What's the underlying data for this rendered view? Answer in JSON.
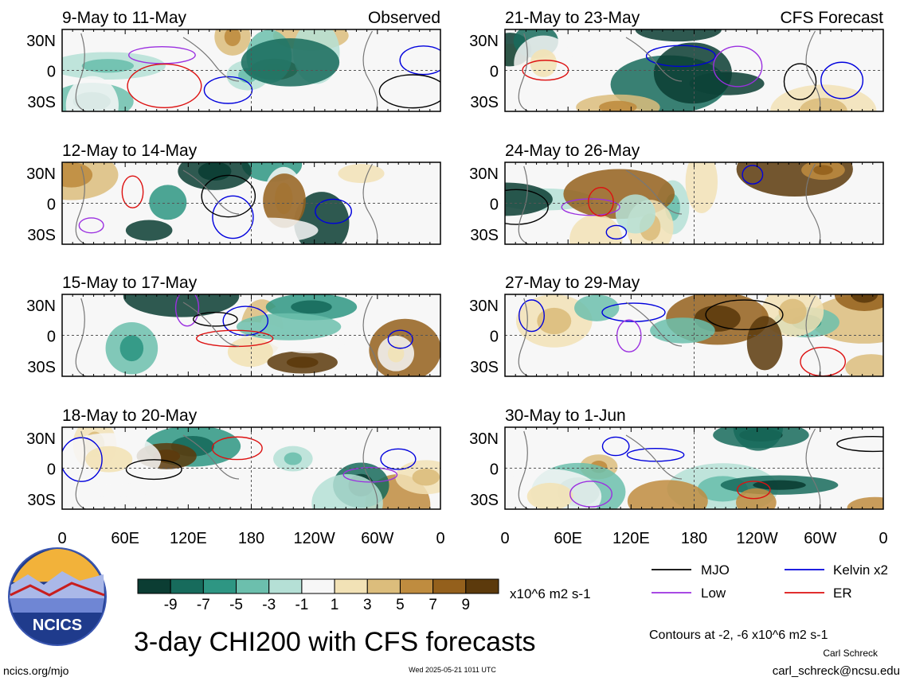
{
  "figure": {
    "title": "3-day CHI200 with CFS forecasts",
    "observed_label": "Observed",
    "forecast_label": "CFS Forecast",
    "source_url": "ncics.org/mjo",
    "timestamp": "Wed 2025-05-21 1011 UTC",
    "author": "Carl Schreck",
    "email": "carl_schreck@ncsu.edu",
    "contour_note": "Contours at -2, -6 x10^6 m2 s-1",
    "logo_text": "NCICS"
  },
  "chart_data": {
    "type": "heatmap",
    "variable": "CHI200",
    "lat_ticks": [
      "30N",
      "0",
      "30S"
    ],
    "lon_ticks": [
      "0",
      "60E",
      "120E",
      "180",
      "120W",
      "60W",
      "0"
    ],
    "panels": [
      {
        "label": "9-May to 11-May",
        "group": "Observed"
      },
      {
        "label": "12-May to 14-May",
        "group": "Observed"
      },
      {
        "label": "15-May to 17-May",
        "group": "Observed"
      },
      {
        "label": "18-May to 20-May",
        "group": "Observed"
      },
      {
        "label": "21-May to 23-May",
        "group": "CFS Forecast"
      },
      {
        "label": "24-May to 26-May",
        "group": "CFS Forecast"
      },
      {
        "label": "27-May to 29-May",
        "group": "CFS Forecast"
      },
      {
        "label": "30-May to 1-Jun",
        "group": "CFS Forecast"
      }
    ],
    "colorbar": {
      "labels": [
        "-9",
        "-7",
        "-5",
        "-3",
        "-1",
        "1",
        "3",
        "5",
        "7",
        "9"
      ],
      "colors": [
        "#0b3d33",
        "#176b5c",
        "#2e9683",
        "#6cbfad",
        "#b5e0d6",
        "#f7f7f7",
        "#f2e2b6",
        "#dcbd7c",
        "#bf8c3f",
        "#94601c",
        "#5c3a0c"
      ],
      "units": "x10^6 m2 s-1"
    },
    "legend": [
      {
        "label": "MJO",
        "color": "#000000"
      },
      {
        "label": "Kelvin x2",
        "color": "#0000dd"
      },
      {
        "label": "Low",
        "color": "#9b30e0"
      },
      {
        "label": "ER",
        "color": "#dd1111"
      }
    ]
  }
}
